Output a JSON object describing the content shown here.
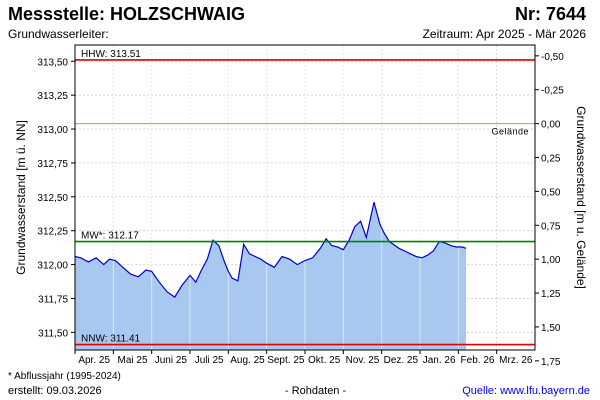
{
  "header": {
    "title": "Messstelle: HOLZSCHWAIG",
    "station_nr": "Nr: 7644",
    "aquifer": "Grundwasserleiter:",
    "period": "Zeitraum: Apr 2025 - Mär 2026"
  },
  "footer": {
    "footnote": "* Abflussjahr (1995-2024)",
    "created": "erstellt:  09.03.2026",
    "raw_data": "- Rohdaten -",
    "source": "Quelle: www.lfu.bayern.de"
  },
  "chart_data": {
    "type": "area",
    "ylabel": "Grundwasserstand [m ü. NN]",
    "y2label": "Grundwasserstand [m u. Gelände]",
    "ylim": [
      311.37,
      313.62
    ],
    "y_ticks": [
      "313,50",
      "313,25",
      "313,00",
      "312,75",
      "312,50",
      "312,25",
      "312,00",
      "311,75",
      "311,50"
    ],
    "y2_ticks": [
      "-0,50",
      "-0,25",
      "0,00",
      "0,25",
      "0,50",
      "0,75",
      "1,00",
      "1,25",
      "1,50",
      "1,75"
    ],
    "y2_reference": 313.04,
    "x_ticks": [
      "Apr. 25",
      "Mai 25",
      "Juni 25",
      "Juli 25",
      "Aug. 25",
      "Sept. 25",
      "Okt. 25",
      "Nov. 25",
      "Dez. 25",
      "Jan. 26",
      "Feb. 26",
      "Mrz. 26"
    ],
    "x_unit": "months since 2025-04-01",
    "xlim": [
      0,
      12
    ],
    "grid": true,
    "reference_lines": [
      {
        "label": "HHW: 313.51",
        "value": 313.51,
        "color": "#e00000",
        "label_pos": "left"
      },
      {
        "label": "Gelände",
        "value": 313.04,
        "color": "#f08060",
        "label_pos": "right"
      },
      {
        "label": "MW*: 312.17",
        "value": 312.17,
        "color": "#008000",
        "label_pos": "left"
      },
      {
        "label": "NNW: 311.41",
        "value": 311.41,
        "color": "#e00000",
        "label_pos": "left"
      }
    ],
    "series": [
      {
        "name": "",
        "color": "#0000cc",
        "fill": "#a8c8f0",
        "x": [
          0,
          0.15,
          0.35,
          0.55,
          0.75,
          0.9,
          1.05,
          1.25,
          1.45,
          1.65,
          1.85,
          2.0,
          2.2,
          2.4,
          2.6,
          2.8,
          3.0,
          3.15,
          3.3,
          3.45,
          3.6,
          3.75,
          3.9,
          4.0,
          4.1,
          4.25,
          4.4,
          4.55,
          4.7,
          4.85,
          5.0,
          5.2,
          5.4,
          5.6,
          5.8,
          6.0,
          6.2,
          6.4,
          6.55,
          6.7,
          6.85,
          7.0,
          7.15,
          7.3,
          7.45,
          7.6,
          7.8,
          7.95,
          8.05,
          8.2,
          8.3,
          8.45,
          8.6,
          8.75,
          8.9,
          9.05,
          9.2,
          9.35,
          9.5,
          9.65,
          9.8,
          9.95,
          10.1,
          10.2
        ],
        "y": [
          312.06,
          312.05,
          312.02,
          312.05,
          312.0,
          312.04,
          312.03,
          311.98,
          311.93,
          311.91,
          311.96,
          311.95,
          311.87,
          311.8,
          311.76,
          311.85,
          311.92,
          311.87,
          311.96,
          312.04,
          312.18,
          312.14,
          312.02,
          311.95,
          311.9,
          311.88,
          312.15,
          312.08,
          312.06,
          312.04,
          312.01,
          311.98,
          312.06,
          312.04,
          312.0,
          312.03,
          312.05,
          312.12,
          312.19,
          312.14,
          312.13,
          312.11,
          312.18,
          312.28,
          312.32,
          312.2,
          312.46,
          312.3,
          312.24,
          312.17,
          312.15,
          312.12,
          312.1,
          312.08,
          312.06,
          312.05,
          312.07,
          312.1,
          312.17,
          312.16,
          312.14,
          312.13,
          312.13,
          312.12
        ]
      }
    ]
  }
}
